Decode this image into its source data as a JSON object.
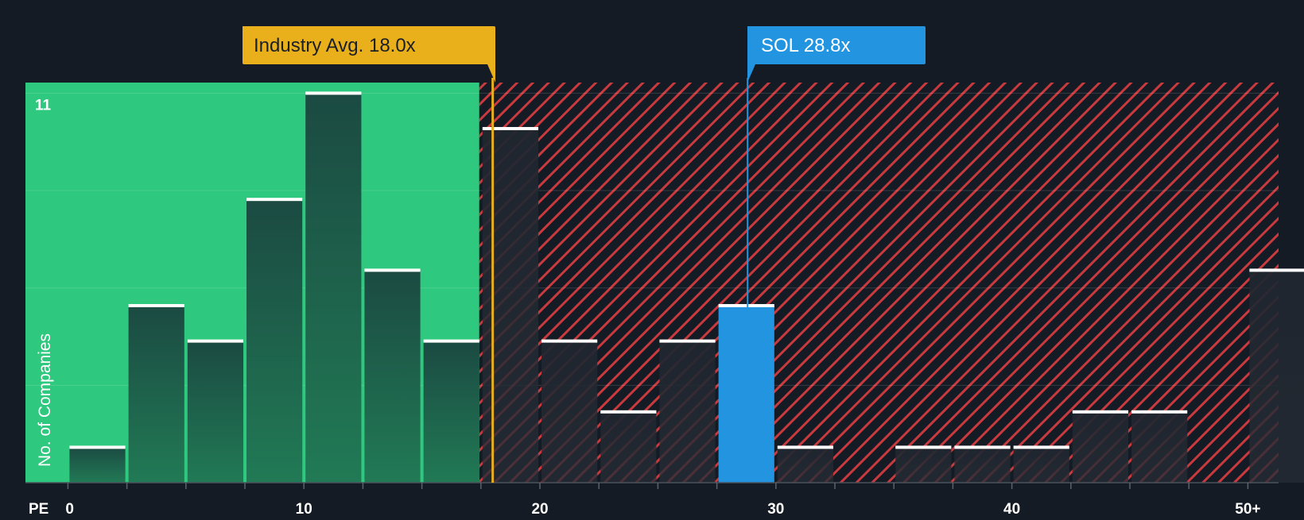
{
  "chart_data": {
    "type": "bar",
    "title": "",
    "xlabel": "PE",
    "ylabel": "No. of Companies",
    "bin_width": 2.5,
    "bins": [
      {
        "start": 0,
        "value": 1
      },
      {
        "start": 2.5,
        "value": 5
      },
      {
        "start": 5,
        "value": 4
      },
      {
        "start": 7.5,
        "value": 8
      },
      {
        "start": 10,
        "value": 11
      },
      {
        "start": 12.5,
        "value": 6
      },
      {
        "start": 15,
        "value": 4
      },
      {
        "start": 17.5,
        "value": 10
      },
      {
        "start": 20,
        "value": 4
      },
      {
        "start": 22.5,
        "value": 2
      },
      {
        "start": 25,
        "value": 4
      },
      {
        "start": 27.5,
        "value": 5,
        "highlight": true
      },
      {
        "start": 30,
        "value": 1
      },
      {
        "start": 32.5,
        "value": 0
      },
      {
        "start": 35,
        "value": 1
      },
      {
        "start": 37.5,
        "value": 1
      },
      {
        "start": 40,
        "value": 1
      },
      {
        "start": 42.5,
        "value": 2
      },
      {
        "start": 45,
        "value": 2
      },
      {
        "start": 47.5,
        "value": 0
      },
      {
        "start": 50,
        "value": 6
      }
    ],
    "xlim": [
      -1.8,
      51.3
    ],
    "ylim": [
      0,
      11.3
    ],
    "x_ticks": [
      {
        "value": 0,
        "label": "0"
      },
      {
        "value": 10,
        "label": "10"
      },
      {
        "value": 20,
        "label": "20"
      },
      {
        "value": 30,
        "label": "30"
      },
      {
        "value": 40,
        "label": "40"
      },
      {
        "value": 50,
        "label": "50+"
      }
    ],
    "y_tick_label": {
      "value": 11,
      "label": "11"
    },
    "y_gridlines": [
      2.75,
      5.5,
      8.25,
      11
    ],
    "industry_avg": {
      "value": 18.0,
      "label": "Industry Avg. 18.0x"
    },
    "company": {
      "value": 28.8,
      "label": "SOL 28.8x"
    },
    "colors": {
      "background": "#151b24",
      "green_zone": "#2ec97e",
      "red_hatch": "#c93a3e",
      "bar_green_top": "#1b4a42",
      "bar_green_bottom": "#217a55",
      "bar_dark": "#222a33",
      "highlight": "#2394e0",
      "industry_badge": "#e9b01c",
      "company_badge": "#2394e0"
    }
  }
}
